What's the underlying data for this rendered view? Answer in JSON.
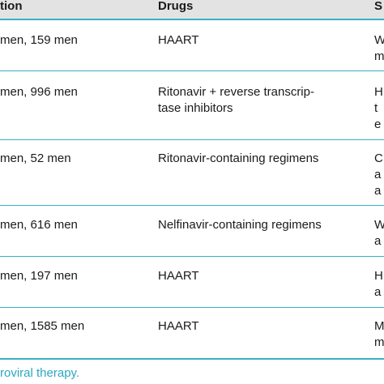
{
  "table": {
    "headers": {
      "population": "tion",
      "drugs": "Drugs",
      "side": "S"
    },
    "rows": [
      {
        "population": "men, 159 men",
        "drugs": [
          "HAART"
        ],
        "side": [
          "W",
          "m"
        ]
      },
      {
        "population": "men, 996 men",
        "drugs": [
          "Ritonavir + reverse transcrip-",
          "tase inhibitors"
        ],
        "side": [
          "H",
          "t",
          "e"
        ]
      },
      {
        "population": "men, 52 men",
        "drugs": [
          "Ritonavir-containing regimens"
        ],
        "side": [
          "C",
          "a",
          "a"
        ]
      },
      {
        "population": "men, 616 men",
        "drugs": [
          "Nelfinavir-containing regimens"
        ],
        "side": [
          "W",
          "a"
        ]
      },
      {
        "population": "men, 197 men",
        "drugs": [
          "HAART"
        ],
        "side": [
          "H",
          "a"
        ]
      },
      {
        "population": "men, 1585 men",
        "drugs": [
          "HAART"
        ],
        "side": [
          "M",
          "m"
        ]
      }
    ]
  },
  "footnote": "roviral therapy.",
  "colors": {
    "rule": "#3ab0c7",
    "header_bg": "#e3e3e3",
    "footnote": "#2ba7c2"
  }
}
